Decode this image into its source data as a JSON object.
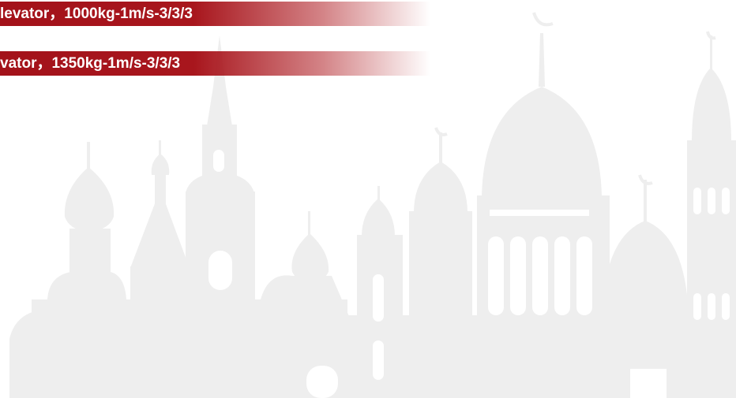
{
  "banners": [
    {
      "text": "levator，1000kg-1m/s-3/3/3"
    },
    {
      "text": "vator，1350kg-1m/s-3/3/3"
    }
  ]
}
